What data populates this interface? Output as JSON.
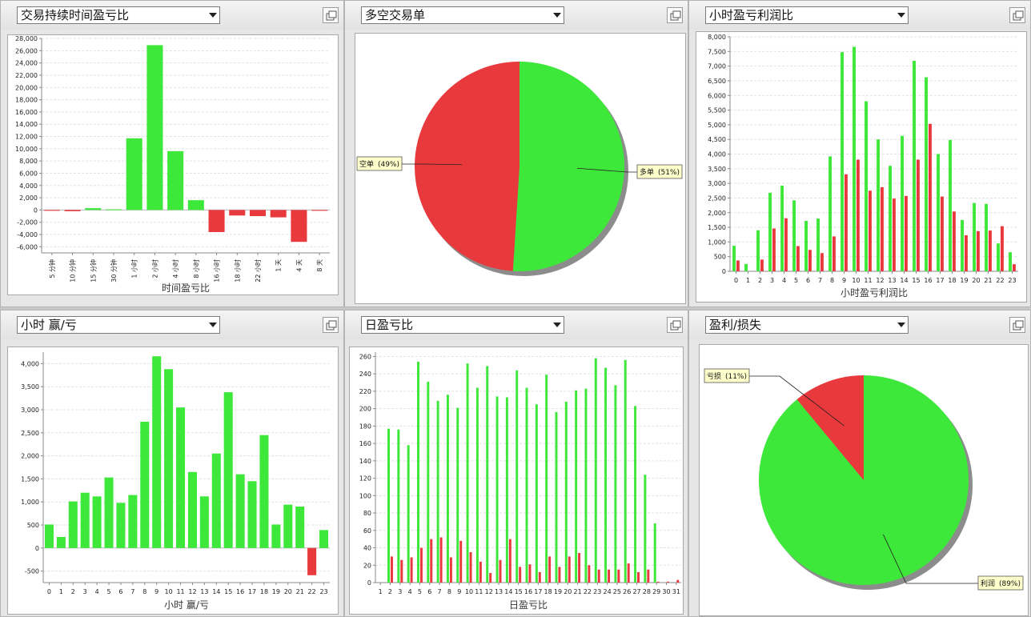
{
  "panels": [
    {
      "title": "交易持续时间盈亏比"
    },
    {
      "title": "多空交易单"
    },
    {
      "title": "小时盈亏利润比"
    },
    {
      "title": "小时 赢/亏"
    },
    {
      "title": "日盈亏比"
    },
    {
      "title": "盈利/损失"
    }
  ],
  "colors": {
    "green": "#3ee83a",
    "red": "#e8393c",
    "label_bg": "#ffffcc"
  },
  "chart_data": [
    {
      "type": "bar",
      "xlabel": "时间盈亏比",
      "ylim": [
        -7000,
        28000
      ],
      "yticks": [
        28000,
        26000,
        24000,
        22000,
        20000,
        18000,
        16000,
        14000,
        12000,
        10000,
        8000,
        6000,
        4000,
        2000,
        0,
        -2000,
        -4000,
        -6000
      ],
      "yticklabels": [
        "28,000",
        "26,000",
        "24,000",
        "22,000",
        "20,000",
        "18,000",
        "16,000",
        "14,000",
        "12,000",
        "10,000",
        "8,000",
        "6,000",
        "4,000",
        "2,000",
        "0",
        "-2,000",
        "-4,000",
        "-6,000"
      ],
      "categories": [
        "5 分钟",
        "10 分钟",
        "15 分钟",
        "30 分钟",
        "1 小时",
        "2 小时",
        "4 小时",
        "8 小时",
        "16 小时",
        "18 小时",
        "22 小时",
        "1 天",
        "4 天",
        "8 天"
      ],
      "values": [
        -100,
        -200,
        300,
        100,
        11700,
        26900,
        9600,
        1600,
        -3600,
        -900,
        -1000,
        -1200,
        -5200,
        -100
      ],
      "grid": true
    },
    {
      "type": "pie",
      "slices": [
        {
          "label": "多单",
          "percent": "(51%)",
          "value": 51,
          "color": "#3ee83a"
        },
        {
          "label": "空单",
          "percent": "(49%)",
          "value": 49,
          "color": "#e8393c"
        }
      ]
    },
    {
      "type": "bar",
      "xlabel": "小时盈亏利润比",
      "ylim": [
        0,
        8000
      ],
      "yticks": [
        8000,
        7500,
        7000,
        6500,
        6000,
        5500,
        5000,
        4500,
        4000,
        3500,
        3000,
        2500,
        2000,
        1500,
        1000,
        500,
        0
      ],
      "yticklabels": [
        "8,000",
        "7,500",
        "7,000",
        "6,500",
        "6,000",
        "5,500",
        "5,000",
        "4,500",
        "4,000",
        "3,500",
        "3,000",
        "2,500",
        "2,000",
        "1,500",
        "1,000",
        "500",
        "0"
      ],
      "categories": [
        "0",
        "1",
        "2",
        "3",
        "4",
        "5",
        "6",
        "7",
        "8",
        "9",
        "10",
        "11",
        "12",
        "13",
        "14",
        "15",
        "16",
        "17",
        "18",
        "19",
        "20",
        "21",
        "22",
        "23"
      ],
      "series": [
        {
          "color": "#3ee83a",
          "values": [
            870,
            250,
            1400,
            2680,
            2920,
            2420,
            1720,
            1800,
            3920,
            7480,
            7660,
            5800,
            4500,
            3600,
            4620,
            7180,
            6620,
            4000,
            4480,
            1750,
            2330,
            2300,
            950,
            650
          ]
        },
        {
          "color": "#e8393c",
          "values": [
            370,
            0,
            400,
            1460,
            1810,
            860,
            730,
            620,
            1190,
            3310,
            3810,
            2750,
            2870,
            2480,
            2570,
            3810,
            5030,
            2550,
            2040,
            1230,
            1370,
            1390,
            1540,
            240
          ]
        }
      ],
      "grid": true
    },
    {
      "type": "bar",
      "xlabel": "小时 赢/亏",
      "ylim": [
        -750,
        4250
      ],
      "yticks": [
        4000,
        3500,
        3000,
        2500,
        2000,
        1500,
        1000,
        500,
        0,
        -500
      ],
      "yticklabels": [
        "4,000",
        "3,500",
        "3,000",
        "2,500",
        "2,000",
        "1,500",
        "1,000",
        "500",
        "0",
        "-500"
      ],
      "categories": [
        "0",
        "1",
        "2",
        "3",
        "4",
        "5",
        "6",
        "7",
        "8",
        "9",
        "10",
        "11",
        "12",
        "13",
        "14",
        "15",
        "16",
        "17",
        "18",
        "19",
        "20",
        "21",
        "22",
        "23"
      ],
      "values": [
        510,
        240,
        1010,
        1200,
        1120,
        1530,
        980,
        1150,
        2740,
        4160,
        3880,
        3050,
        1650,
        1120,
        2050,
        3380,
        1600,
        1450,
        2450,
        510,
        940,
        900,
        -590,
        390
      ],
      "grid": true
    },
    {
      "type": "bar",
      "xlabel": "日盈亏比",
      "ylim": [
        0,
        265
      ],
      "yticks": [
        260,
        240,
        220,
        200,
        180,
        160,
        140,
        120,
        100,
        80,
        60,
        40,
        20,
        0
      ],
      "yticklabels": [
        "260",
        "240",
        "220",
        "200",
        "180",
        "160",
        "140",
        "120",
        "100",
        "80",
        "60",
        "40",
        "20",
        "0"
      ],
      "categories": [
        "1",
        "2",
        "3",
        "4",
        "5",
        "6",
        "7",
        "8",
        "9",
        "10",
        "11",
        "12",
        "13",
        "14",
        "15",
        "16",
        "17",
        "18",
        "19",
        "20",
        "21",
        "22",
        "23",
        "24",
        "25",
        "26",
        "27",
        "28",
        "29",
        "30",
        "31"
      ],
      "series": [
        {
          "color": "#3ee83a",
          "values": [
            0,
            177,
            176,
            158,
            254,
            231,
            209,
            216,
            201,
            252,
            224,
            249,
            214,
            213,
            244,
            224,
            205,
            239,
            196,
            208,
            221,
            223,
            258,
            247,
            227,
            256,
            203,
            124,
            68,
            0,
            0
          ]
        },
        {
          "color": "#e8393c",
          "values": [
            0,
            30,
            26,
            29,
            40,
            50,
            52,
            29,
            48,
            35,
            24,
            11,
            26,
            50,
            18,
            21,
            12,
            30,
            18,
            30,
            34,
            20,
            15,
            15,
            15,
            22,
            12,
            15,
            1,
            1,
            3
          ]
        }
      ],
      "grid": true
    },
    {
      "type": "pie",
      "slices": [
        {
          "label": "利润",
          "percent": "(89%)",
          "value": 89,
          "color": "#3ee83a"
        },
        {
          "label": "亏损",
          "percent": "(11%)",
          "value": 11,
          "color": "#e8393c"
        }
      ]
    }
  ]
}
